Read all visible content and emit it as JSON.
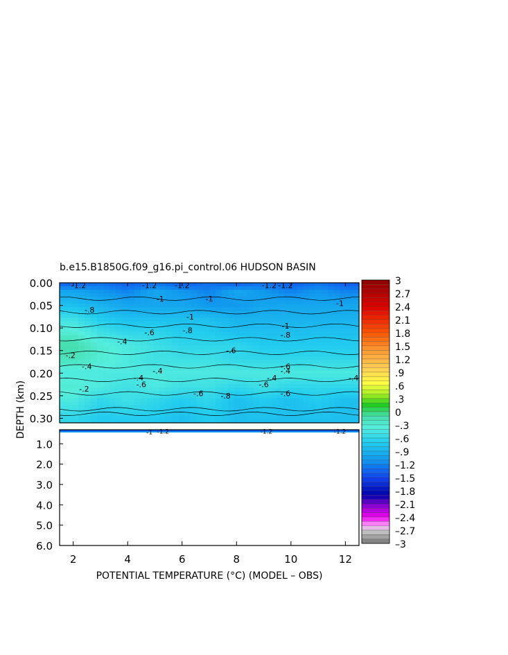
{
  "chart_data": {
    "type": "heatmap",
    "title": "b.e15.B1850G.f09_g16.pi_control.06 HUDSON BASIN",
    "xlabel": "POTENTIAL TEMPERATURE (°C) (MODEL – OBS)",
    "ylabel": "DEPTH (km)",
    "xlim": [
      1.5,
      12.5
    ],
    "x_ticks": [
      2,
      4,
      6,
      8,
      10,
      12
    ],
    "x_tick_labels": [
      "2",
      "4",
      "6",
      "8",
      "10",
      "12"
    ],
    "upper_panel": {
      "ylim": [
        0.0,
        0.31
      ],
      "y_ticks": [
        0.0,
        0.05,
        0.1,
        0.15,
        0.2,
        0.25,
        0.3
      ],
      "y_tick_labels": [
        "0.00",
        "0.05",
        "0.10",
        "0.15",
        "0.20",
        "0.25",
        "0.30"
      ],
      "x": [
        2,
        3,
        4,
        5,
        6,
        7,
        8,
        9,
        10,
        11,
        12
      ],
      "depth": [
        0.0,
        0.02,
        0.05,
        0.08,
        0.11,
        0.14,
        0.17,
        0.2,
        0.23,
        0.26,
        0.3
      ],
      "values": [
        [
          -1.4,
          -1.3,
          -1.4,
          -1.3,
          -1.4,
          -1.3,
          -1.4,
          -1.3,
          -1.4,
          -1.3,
          -1.4
        ],
        [
          -1.0,
          -1.1,
          -1.2,
          -1.0,
          -1.1,
          -1.2,
          -1.0,
          -1.1,
          -1.2,
          -1.1,
          -1.2
        ],
        [
          -0.8,
          -0.9,
          -1.0,
          -1.0,
          -1.0,
          -1.1,
          -1.1,
          -1.0,
          -1.0,
          -1.0,
          -1.0
        ],
        [
          -0.5,
          -0.7,
          -0.8,
          -0.8,
          -0.8,
          -0.8,
          -0.9,
          -0.9,
          -0.9,
          -0.9,
          -0.9
        ],
        [
          -0.3,
          -0.5,
          -0.6,
          -0.6,
          -0.7,
          -0.7,
          -0.8,
          -0.8,
          -0.8,
          -0.8,
          -0.8
        ],
        [
          -0.1,
          -0.3,
          -0.4,
          -0.5,
          -0.6,
          -0.6,
          -0.6,
          -0.7,
          -0.7,
          -0.7,
          -0.7
        ],
        [
          -0.2,
          -0.3,
          -0.4,
          -0.5,
          -0.5,
          -0.5,
          -0.6,
          -0.6,
          -0.6,
          -0.6,
          -0.6
        ],
        [
          -0.4,
          -0.4,
          -0.4,
          -0.4,
          -0.4,
          -0.4,
          -0.4,
          -0.4,
          -0.4,
          -0.4,
          -0.4
        ],
        [
          -0.3,
          -0.4,
          -0.5,
          -0.4,
          -0.5,
          -0.5,
          -0.6,
          -0.5,
          -0.6,
          -0.6,
          -0.6
        ],
        [
          -0.4,
          -0.6,
          -0.5,
          -0.6,
          -0.7,
          -0.6,
          -0.8,
          -0.7,
          -0.8,
          -0.7,
          -0.8
        ],
        [
          -0.6,
          -0.7,
          -0.7,
          -0.7,
          -0.8,
          -0.7,
          -0.8,
          -0.8,
          -0.8,
          -0.8,
          -0.8
        ]
      ],
      "contour_labels": [
        {
          "text": "-1.2",
          "x": 2.2,
          "depth": 0.005
        },
        {
          "text": "-1.2",
          "x": 4.8,
          "depth": 0.005
        },
        {
          "text": "-1.2",
          "x": 6.0,
          "depth": 0.005
        },
        {
          "text": "-1.2",
          "x": 9.2,
          "depth": 0.005
        },
        {
          "text": "-1.2",
          "x": 9.8,
          "depth": 0.005
        },
        {
          "text": "-1",
          "x": 5.2,
          "depth": 0.035
        },
        {
          "text": "-1",
          "x": 7.0,
          "depth": 0.035
        },
        {
          "text": "-1",
          "x": 11.8,
          "depth": 0.045
        },
        {
          "text": "-.8",
          "x": 2.6,
          "depth": 0.06
        },
        {
          "text": "-1",
          "x": 6.3,
          "depth": 0.075
        },
        {
          "text": "-1",
          "x": 9.8,
          "depth": 0.095
        },
        {
          "text": "-.8",
          "x": 6.2,
          "depth": 0.105
        },
        {
          "text": "-.8",
          "x": 9.8,
          "depth": 0.115
        },
        {
          "text": "-.6",
          "x": 4.8,
          "depth": 0.11
        },
        {
          "text": "-.4",
          "x": 3.8,
          "depth": 0.13
        },
        {
          "text": "-.6",
          "x": 7.8,
          "depth": 0.15
        },
        {
          "text": "-.2",
          "x": 1.9,
          "depth": 0.16
        },
        {
          "text": "-.4",
          "x": 2.5,
          "depth": 0.185
        },
        {
          "text": "-.4",
          "x": 5.1,
          "depth": 0.195
        },
        {
          "text": "-.6",
          "x": 9.8,
          "depth": 0.185
        },
        {
          "text": "-.4",
          "x": 9.8,
          "depth": 0.195
        },
        {
          "text": "-.4",
          "x": 12.3,
          "depth": 0.21
        },
        {
          "text": "-.4",
          "x": 4.4,
          "depth": 0.21
        },
        {
          "text": "-.6",
          "x": 4.5,
          "depth": 0.225
        },
        {
          "text": "-.4",
          "x": 9.3,
          "depth": 0.21
        },
        {
          "text": "-.6",
          "x": 9.0,
          "depth": 0.225
        },
        {
          "text": "-.2",
          "x": 2.4,
          "depth": 0.235
        },
        {
          "text": "-.6",
          "x": 6.6,
          "depth": 0.245
        },
        {
          "text": "-.8",
          "x": 7.6,
          "depth": 0.25
        },
        {
          "text": "-.6",
          "x": 9.8,
          "depth": 0.245
        }
      ]
    },
    "lower_panel": {
      "ylim": [
        0.31,
        6.0
      ],
      "y_ticks": [
        1.0,
        2.0,
        3.0,
        4.0,
        5.0,
        6.0
      ],
      "y_tick_labels": [
        "1.0",
        "2.0",
        "3.0",
        "4.0",
        "5.0",
        "6.0"
      ],
      "contour_labels": [
        {
          "text": "-1",
          "x": 4.8,
          "depth": 0.4
        },
        {
          "text": "-1.2",
          "x": 5.3,
          "depth": 0.36
        },
        {
          "text": "-1.2",
          "x": 9.1,
          "depth": 0.36
        },
        {
          "text": "-1.2",
          "x": 11.8,
          "depth": 0.36
        }
      ]
    },
    "colorbar": {
      "range": [
        -3,
        3
      ],
      "tick_labels": [
        "3",
        "2.7",
        "2.4",
        "2.1",
        "1.8",
        "1.5",
        "1.2",
        ".9",
        ".6",
        ".3",
        "0",
        "–.3",
        "–.6",
        "–.9",
        "–1.2",
        "–1.5",
        "–1.8",
        "–2.1",
        "–2.4",
        "–2.7",
        "–3"
      ],
      "colors": [
        {
          "value": 3.0,
          "color": "#8b0000"
        },
        {
          "value": 2.4,
          "color": "#dd0000"
        },
        {
          "value": 1.8,
          "color": "#ff5500"
        },
        {
          "value": 1.4,
          "color": "#ff9933"
        },
        {
          "value": 1.0,
          "color": "#ffcc55"
        },
        {
          "value": 0.65,
          "color": "#ffff44"
        },
        {
          "value": 0.4,
          "color": "#aaee22"
        },
        {
          "value": 0.15,
          "color": "#22cc22"
        },
        {
          "value": -0.1,
          "color": "#44ddaa"
        },
        {
          "value": -0.35,
          "color": "#55eedd"
        },
        {
          "value": -0.7,
          "color": "#22ccee"
        },
        {
          "value": -1.1,
          "color": "#1199ee"
        },
        {
          "value": -1.5,
          "color": "#1144ee"
        },
        {
          "value": -1.9,
          "color": "#0000aa"
        },
        {
          "value": -2.1,
          "color": "#7700cc"
        },
        {
          "value": -2.4,
          "color": "#ee00ee"
        },
        {
          "value": -2.6,
          "color": "#ffaaff"
        },
        {
          "value": -2.7,
          "color": "#cccccc"
        },
        {
          "value": -3.0,
          "color": "#777777"
        }
      ]
    }
  }
}
